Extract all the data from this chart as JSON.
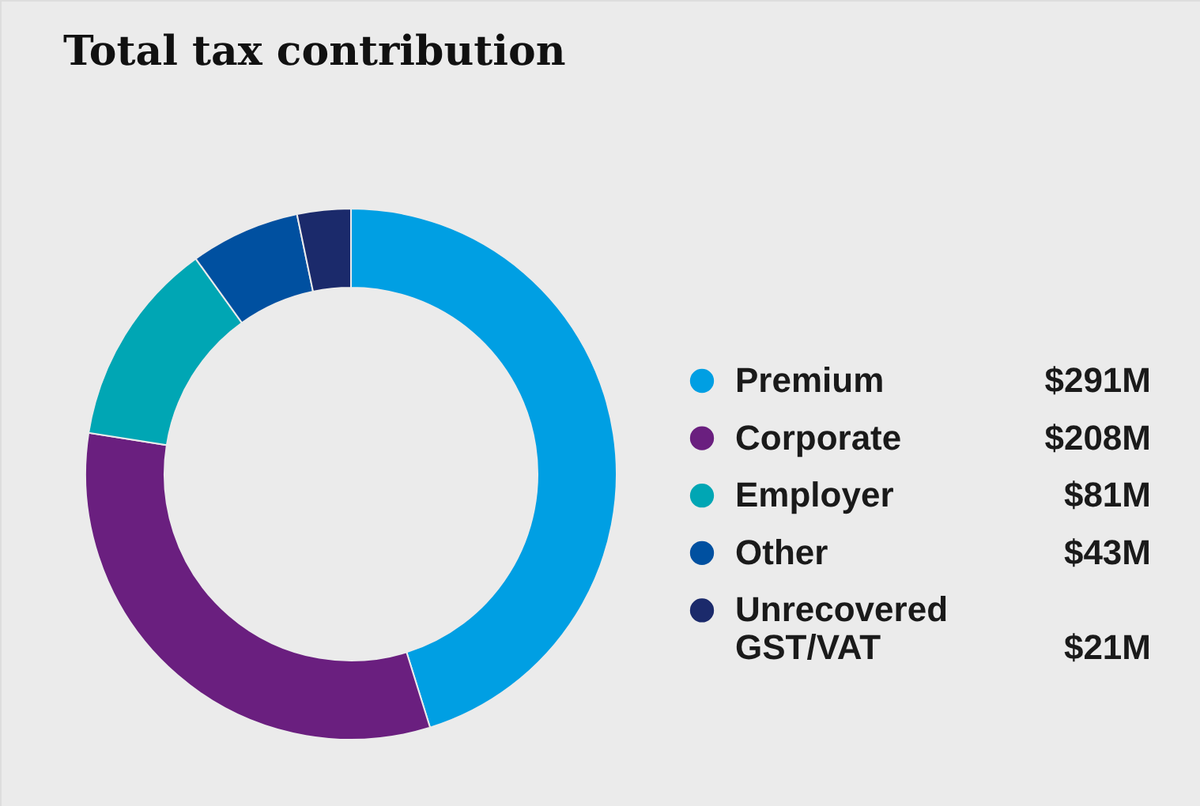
{
  "chart_data": {
    "type": "donut",
    "title": "Total tax contribution",
    "categories": [
      "Premium",
      "Corporate",
      "Employer",
      "Other",
      "Unrecovered GST/VAT"
    ],
    "values": [
      291,
      208,
      81,
      43,
      21
    ],
    "value_labels": [
      "$291M",
      "$208M",
      "$81M",
      "$43M",
      "$21M"
    ],
    "colors": [
      "#009fe3",
      "#6a1f7f",
      "#00a6b4",
      "#0050a0",
      "#1b2a6b"
    ],
    "legend": "right"
  }
}
